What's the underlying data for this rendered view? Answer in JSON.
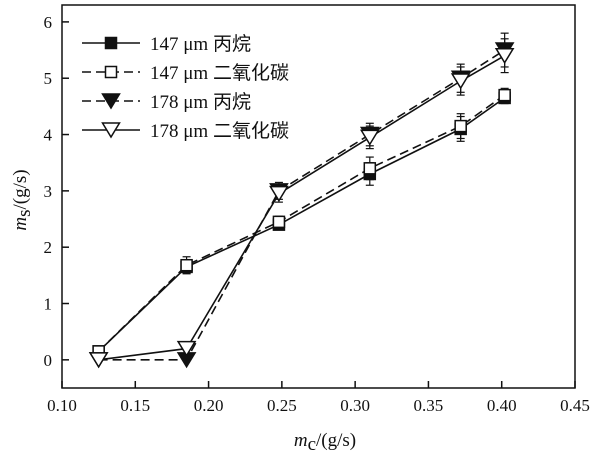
{
  "chart_data": {
    "type": "line",
    "xlabel": {
      "symbol": "m",
      "sub": "c",
      "unit": "/(g/s)"
    },
    "ylabel": {
      "symbol": "m",
      "sub": "s",
      "unit": "/(g/s)"
    },
    "xlim": [
      0.1,
      0.45
    ],
    "ylim": [
      -0.5,
      6.3
    ],
    "xticks": [
      "0.10",
      "0.15",
      "0.20",
      "0.25",
      "0.30",
      "0.35",
      "0.40",
      "0.45"
    ],
    "yticks": [
      "0",
      "1",
      "2",
      "3",
      "4",
      "5",
      "6"
    ],
    "grid": false,
    "legend_position": "top-left",
    "series": [
      {
        "name": "147 μm 丙烷",
        "marker": "square-filled",
        "line": "solid",
        "x": [
          0.125,
          0.185,
          0.248,
          0.31,
          0.372,
          0.402
        ],
        "y": [
          0.15,
          1.65,
          2.4,
          3.3,
          4.1,
          4.65
        ],
        "err": [
          0.05,
          0.12,
          0.07,
          0.2,
          0.22,
          0.1
        ]
      },
      {
        "name": "147 μm 二氧化碳",
        "marker": "square-open",
        "line": "dashed",
        "x": [
          0.125,
          0.185,
          0.248,
          0.31,
          0.372,
          0.402
        ],
        "y": [
          0.15,
          1.68,
          2.45,
          3.4,
          4.15,
          4.7
        ],
        "err": [
          0.05,
          0.15,
          0.1,
          0.2,
          0.22,
          0.12
        ]
      },
      {
        "name": "178 μm 丙烷",
        "marker": "triangle-down-filled",
        "line": "dashed",
        "x": [
          0.125,
          0.185,
          0.248,
          0.31,
          0.372,
          0.402
        ],
        "y": [
          0.0,
          0.0,
          3.0,
          4.0,
          5.0,
          5.5
        ],
        "err": [
          0.0,
          0.0,
          0.15,
          0.2,
          0.25,
          0.3
        ]
      },
      {
        "name": "178 μm 二氧化碳",
        "marker": "triangle-down-open",
        "line": "solid",
        "x": [
          0.125,
          0.185,
          0.248,
          0.31,
          0.372,
          0.402
        ],
        "y": [
          0.0,
          0.2,
          2.95,
          3.95,
          4.95,
          5.4
        ],
        "err": [
          0.0,
          0.0,
          0.15,
          0.2,
          0.25,
          0.3
        ]
      }
    ]
  }
}
